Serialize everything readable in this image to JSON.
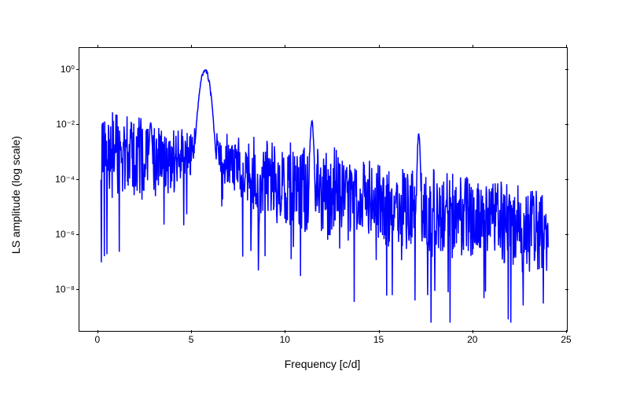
{
  "chart": {
    "type": "line",
    "xlabel": "Frequency [c/d]",
    "ylabel": "LS amplitude (log scale)",
    "xlim": [
      -1,
      25
    ],
    "ylim_log10": [
      -9.5,
      0.8
    ],
    "xticks": [
      0,
      5,
      10,
      15,
      20,
      25
    ],
    "yticks_log10": [
      0,
      -2,
      -4,
      -6,
      -8
    ],
    "ytick_labels": [
      "10⁰",
      "10⁻²",
      "10⁻⁴",
      "10⁻⁶",
      "10⁻⁸"
    ],
    "line_color": "#0000ff",
    "line_width": 1.5,
    "background_color": "#ffffff",
    "border_color": "#000000",
    "label_fontsize": 14,
    "tick_fontsize": 12,
    "scale": "log",
    "peaks_freq": [
      2.8,
      5.7,
      11.4,
      17.1
    ],
    "seed": 42
  }
}
